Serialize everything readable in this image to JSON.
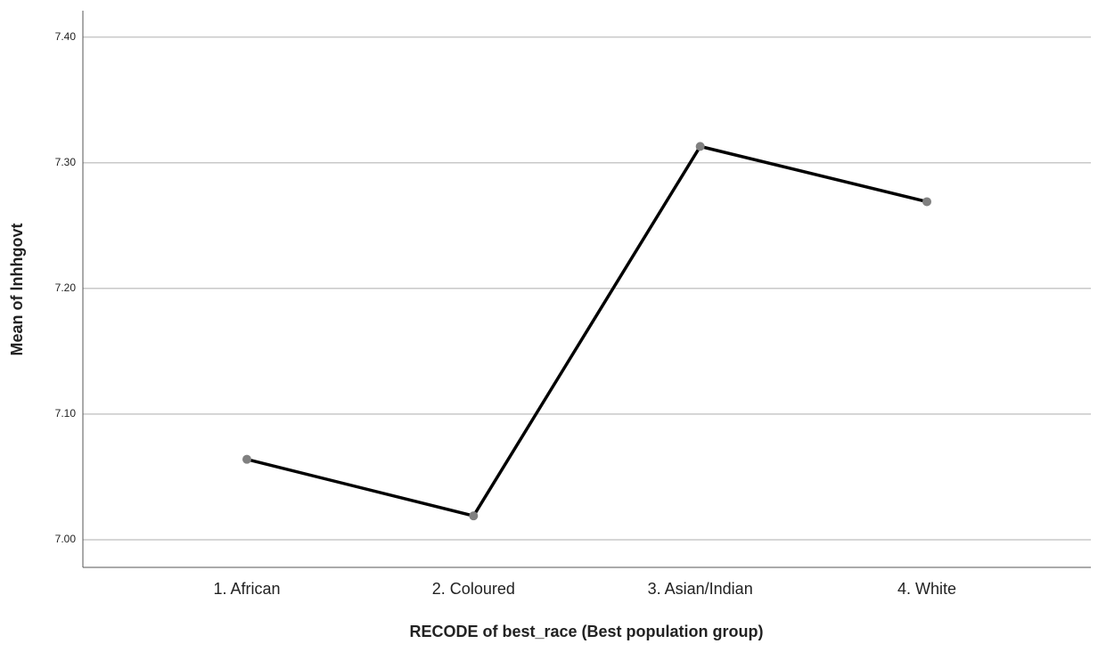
{
  "chart_data": {
    "type": "line",
    "x_label": "RECODE of best_race (Best population group)",
    "y_label": "Mean of lnhhgovt",
    "categories": [
      "1. African",
      "2. Coloured",
      "3. Asian/Indian",
      "4. White"
    ],
    "values": [
      7.064,
      7.019,
      7.313,
      7.269
    ],
    "color": "#000000",
    "marker_color": "#808080",
    "ylim": [
      6.978,
      7.421
    ],
    "yticks": [
      {
        "value": 7.0,
        "label": "7.00"
      },
      {
        "value": 7.1,
        "label": "7.10"
      },
      {
        "value": 7.2,
        "label": "7.20"
      },
      {
        "value": 7.3,
        "label": "7.30"
      },
      {
        "value": 7.4,
        "label": "7.40"
      }
    ],
    "grid": true
  }
}
